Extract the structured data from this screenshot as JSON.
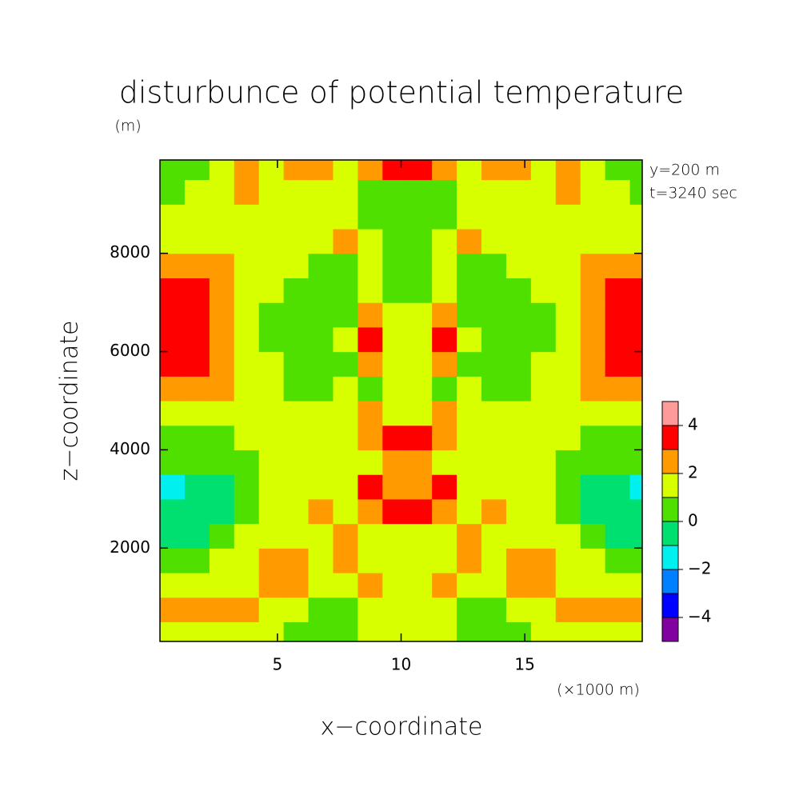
{
  "chart_data": {
    "type": "contour",
    "title": "disturbunce of potential temperature",
    "y_unit": "(m)",
    "ylabel": "z−coordinate",
    "xlabel": "x−coordinate",
    "x_unit": "(×1000 m)",
    "annotations": [
      "y=200 m",
      "t=3240 sec"
    ],
    "xlim": [
      0.25,
      19.75
    ],
    "xticks": [
      5,
      10,
      15
    ],
    "ylim": [
      100,
      9900
    ],
    "yticks": [
      2000,
      4000,
      6000,
      8000
    ],
    "x": [
      0.75,
      1.75,
      2.75,
      3.75,
      4.75,
      5.75,
      6.75,
      7.75,
      8.75,
      9.75,
      10.75,
      11.75,
      12.75,
      13.75,
      14.75,
      15.75,
      16.75,
      17.75,
      18.75,
      19.75
    ],
    "z": [
      250,
      750,
      1250,
      1750,
      2250,
      2750,
      3250,
      3750,
      4250,
      4750,
      5250,
      5750,
      6250,
      6750,
      7250,
      7750,
      8250,
      8750,
      9250,
      9750
    ],
    "values": [
      [
        1.5,
        1.5,
        1.5,
        1.5,
        1.5,
        0.5,
        0.5,
        0.5,
        1.5,
        1.5,
        1.5,
        1.5,
        0.5,
        0.5,
        0.5,
        1.5,
        1.5,
        1.5,
        1.5,
        1.5
      ],
      [
        2.5,
        2.5,
        2.5,
        2.5,
        1.5,
        1.5,
        0.5,
        0.5,
        1.5,
        1.5,
        1.5,
        1.5,
        0.5,
        0.5,
        1.5,
        1.5,
        2.5,
        2.5,
        2.5,
        2.5
      ],
      [
        1.5,
        1.5,
        1.5,
        1.5,
        2.5,
        2.5,
        1.5,
        1.5,
        2.5,
        1.5,
        1.5,
        2.5,
        1.5,
        1.5,
        2.5,
        2.5,
        1.5,
        1.5,
        1.5,
        1.5
      ],
      [
        0.5,
        0.5,
        1.5,
        1.5,
        2.5,
        2.5,
        1.5,
        2.5,
        1.5,
        1.5,
        1.5,
        1.5,
        2.5,
        1.5,
        2.5,
        2.5,
        1.5,
        1.5,
        0.5,
        0.5
      ],
      [
        -0.5,
        -0.5,
        0.5,
        1.5,
        1.5,
        1.5,
        1.5,
        2.5,
        1.5,
        1.5,
        1.5,
        1.5,
        2.5,
        1.5,
        1.5,
        1.5,
        1.5,
        0.5,
        -0.5,
        -0.5
      ],
      [
        -0.5,
        -0.5,
        -0.5,
        0.5,
        1.5,
        1.5,
        2.5,
        1.5,
        2.5,
        3.5,
        3.5,
        2.5,
        1.5,
        2.5,
        1.5,
        1.5,
        0.5,
        -0.5,
        -0.5,
        -0.5
      ],
      [
        -1.5,
        -0.5,
        -0.5,
        0.5,
        1.5,
        1.5,
        1.5,
        1.5,
        3.5,
        2.5,
        2.5,
        3.5,
        1.5,
        1.5,
        1.5,
        1.5,
        0.5,
        -0.5,
        -0.5,
        -1.5
      ],
      [
        0.5,
        0.5,
        0.5,
        0.5,
        1.5,
        1.5,
        1.5,
        1.5,
        1.5,
        2.5,
        2.5,
        1.5,
        1.5,
        1.5,
        1.5,
        1.5,
        0.5,
        0.5,
        0.5,
        0.5
      ],
      [
        0.5,
        0.5,
        0.5,
        1.5,
        1.5,
        1.5,
        1.5,
        1.5,
        2.5,
        3.5,
        3.5,
        2.5,
        1.5,
        1.5,
        1.5,
        1.5,
        1.5,
        0.5,
        0.5,
        0.5
      ],
      [
        1.5,
        1.5,
        1.5,
        1.5,
        1.5,
        1.5,
        1.5,
        1.5,
        2.5,
        1.5,
        1.5,
        2.5,
        1.5,
        1.5,
        1.5,
        1.5,
        1.5,
        1.5,
        1.5,
        1.5
      ],
      [
        2.5,
        2.5,
        2.5,
        1.5,
        1.5,
        0.5,
        0.5,
        1.5,
        0.5,
        1.5,
        1.5,
        0.5,
        1.5,
        0.5,
        0.5,
        1.5,
        1.5,
        2.5,
        2.5,
        2.5
      ],
      [
        3.5,
        3.5,
        2.5,
        1.5,
        1.5,
        0.5,
        0.5,
        0.5,
        2.5,
        1.5,
        1.5,
        2.5,
        0.5,
        0.5,
        0.5,
        1.5,
        1.5,
        2.5,
        3.5,
        3.5
      ],
      [
        3.5,
        3.5,
        2.5,
        1.5,
        0.5,
        0.5,
        0.5,
        1.5,
        3.5,
        1.5,
        1.5,
        3.5,
        1.5,
        0.5,
        0.5,
        0.5,
        1.5,
        2.5,
        3.5,
        3.5
      ],
      [
        3.5,
        3.5,
        2.5,
        1.5,
        0.5,
        0.5,
        0.5,
        0.5,
        2.5,
        1.5,
        1.5,
        2.5,
        0.5,
        0.5,
        0.5,
        0.5,
        1.5,
        2.5,
        3.5,
        3.5
      ],
      [
        3.5,
        3.5,
        2.5,
        1.5,
        1.5,
        0.5,
        0.5,
        0.5,
        1.5,
        0.5,
        0.5,
        1.5,
        0.5,
        0.5,
        0.5,
        1.5,
        1.5,
        2.5,
        3.5,
        3.5
      ],
      [
        2.5,
        2.5,
        2.5,
        1.5,
        1.5,
        1.5,
        0.5,
        0.5,
        1.5,
        0.5,
        0.5,
        1.5,
        0.5,
        0.5,
        1.5,
        1.5,
        1.5,
        2.5,
        2.5,
        2.5
      ],
      [
        1.5,
        1.5,
        1.5,
        1.5,
        1.5,
        1.5,
        1.5,
        2.5,
        1.5,
        0.5,
        0.5,
        1.5,
        2.5,
        1.5,
        1.5,
        1.5,
        1.5,
        1.5,
        1.5,
        1.5
      ],
      [
        1.5,
        1.5,
        1.5,
        1.5,
        1.5,
        1.5,
        1.5,
        1.5,
        0.5,
        0.5,
        0.5,
        0.5,
        1.5,
        1.5,
        1.5,
        1.5,
        1.5,
        1.5,
        1.5,
        1.5
      ],
      [
        0.5,
        1.5,
        1.5,
        2.5,
        1.5,
        1.5,
        1.5,
        1.5,
        0.5,
        0.5,
        0.5,
        0.5,
        1.5,
        1.5,
        1.5,
        1.5,
        2.5,
        1.5,
        1.5,
        0.5
      ],
      [
        0.5,
        0.5,
        1.5,
        2.5,
        1.5,
        2.5,
        2.5,
        1.5,
        2.5,
        3.5,
        3.5,
        2.5,
        1.5,
        2.5,
        2.5,
        1.5,
        2.5,
        1.5,
        0.5,
        0.5
      ]
    ],
    "levels": [
      -5,
      -4,
      -3,
      -2,
      -1,
      0,
      1,
      2,
      3,
      4,
      5
    ],
    "colors": [
      "#8000a0",
      "#0000ff",
      "#0080ff",
      "#00f0f0",
      "#00e070",
      "#50e000",
      "#d8ff00",
      "#ff9a00",
      "#ff0000",
      "#ff9a9a"
    ],
    "colorbar_ticks": [
      {
        "value": -4,
        "label": "−4"
      },
      {
        "value": -2,
        "label": "−2"
      },
      0,
      2,
      4
    ]
  }
}
